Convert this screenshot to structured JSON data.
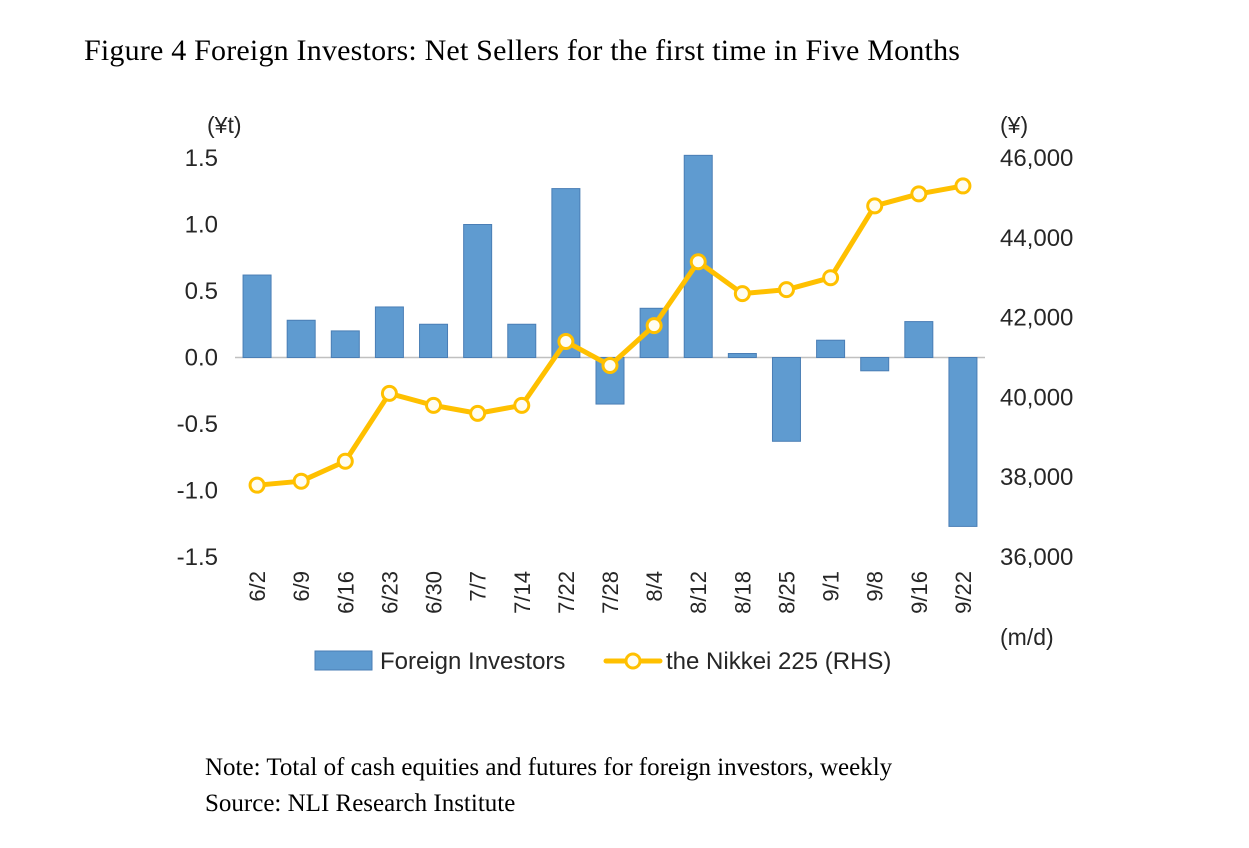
{
  "title": "Figure 4 Foreign Investors: Net Sellers for the first time in Five Months",
  "note": "Note: Total of cash equities and futures for foreign investors, weekly",
  "source": "Source: NLI Research Institute",
  "chart_data": {
    "type": "bar+line",
    "categories": [
      "6/2",
      "6/9",
      "6/16",
      "6/23",
      "6/30",
      "7/7",
      "7/14",
      "7/22",
      "7/28",
      "8/4",
      "8/12",
      "8/18",
      "8/25",
      "9/1",
      "9/8",
      "9/16",
      "9/22"
    ],
    "series": [
      {
        "name": "Foreign Investors",
        "type": "bar",
        "axis": "left",
        "color": "#5f9bd0",
        "border_color": "#4a7eb5",
        "values": [
          0.62,
          0.28,
          0.2,
          0.38,
          0.25,
          1.0,
          0.25,
          1.27,
          -0.35,
          0.37,
          1.52,
          0.03,
          -0.63,
          0.13,
          -0.1,
          0.27,
          -1.27
        ]
      },
      {
        "name": "the Nikkei 225 (RHS)",
        "type": "line",
        "axis": "right",
        "color": "#ffc000",
        "marker_fill": "#fffdf2",
        "values": [
          37800,
          37900,
          38400,
          40100,
          39800,
          39600,
          39800,
          41400,
          40800,
          41800,
          43400,
          42600,
          42700,
          43000,
          44800,
          45100,
          45300
        ]
      }
    ],
    "left_axis": {
      "label": "(¥t)",
      "min": -1.5,
      "max": 1.5,
      "tick_values": [
        1.5,
        1.0,
        0.5,
        0.0,
        -0.5,
        -1.0,
        -1.5
      ],
      "tick_labels": [
        "1.5",
        "1.0",
        "0.5",
        "0.0",
        "-0.5",
        "-1.0",
        "-1.5"
      ]
    },
    "right_axis": {
      "label": "(¥)",
      "min": 36000,
      "max": 46000,
      "tick_values": [
        46000,
        44000,
        42000,
        40000,
        38000,
        36000
      ],
      "tick_labels": [
        "46,000",
        "44,000",
        "42,000",
        "40,000",
        "38,000",
        "36,000"
      ]
    },
    "x_axis": {
      "label": "(m/d)"
    },
    "legend_position": "bottom",
    "grid": false,
    "zero_line_color": "#c0c0c0"
  }
}
